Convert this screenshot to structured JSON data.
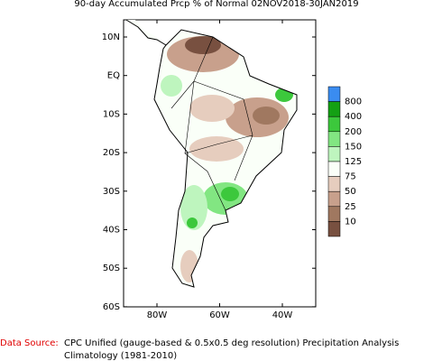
{
  "title": "90-day Accumulated Prcp % of Normal 02NOV2018-30JAN2019",
  "lat_labels": [
    "10N",
    "EQ",
    "10S",
    "20S",
    "30S",
    "40S",
    "50S",
    "60S"
  ],
  "lon_labels": [
    "80W",
    "60W",
    "40W"
  ],
  "legend": {
    "colors": [
      "#3a8cf0",
      "#14a014",
      "#3cc83c",
      "#82e682",
      "#bef5be",
      "#fafff8",
      "#e6cdbe",
      "#c8a08c",
      "#a07860",
      "#785040"
    ],
    "labels": [
      800,
      400,
      200,
      150,
      125,
      75,
      50,
      25,
      10
    ]
  },
  "source_label": "Data Source:",
  "source_lines": [
    "CPC Unified (gauge-based & 0.5x0.5 deg resolution) Precipitation Analysis",
    "Climatology (1981-2010)"
  ]
}
